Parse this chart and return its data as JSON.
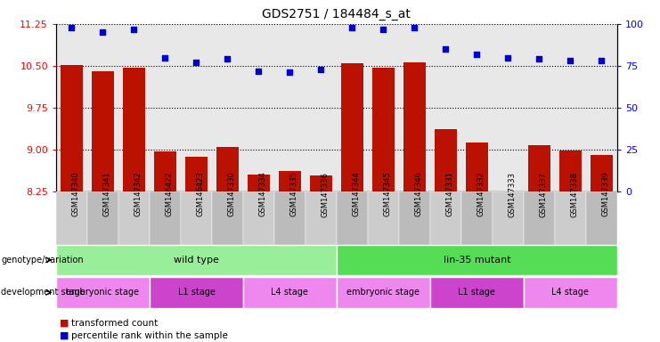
{
  "title": "GDS2751 / 184484_s_at",
  "samples": [
    "GSM147340",
    "GSM147341",
    "GSM147342",
    "GSM146422",
    "GSM146423",
    "GSM147330",
    "GSM147334",
    "GSM147335",
    "GSM147336",
    "GSM147344",
    "GSM147345",
    "GSM147346",
    "GSM147331",
    "GSM147332",
    "GSM147333",
    "GSM147337",
    "GSM147338",
    "GSM147339"
  ],
  "bar_values": [
    10.51,
    10.4,
    10.47,
    8.97,
    8.87,
    9.04,
    8.56,
    8.62,
    8.53,
    10.54,
    10.47,
    10.56,
    9.37,
    9.12,
    8.25,
    9.08,
    8.98,
    8.9
  ],
  "dot_values": [
    98,
    95,
    97,
    80,
    77,
    79,
    72,
    71,
    73,
    98,
    97,
    98,
    85,
    82,
    80,
    79,
    78,
    78
  ],
  "ylim_left": [
    8.25,
    11.25
  ],
  "yticks_left": [
    8.25,
    9.0,
    9.75,
    10.5,
    11.25
  ],
  "ylim_right": [
    0,
    100
  ],
  "yticks_right": [
    0,
    25,
    50,
    75,
    100
  ],
  "bar_color": "#bb1100",
  "dot_color": "#0000cc",
  "plot_bg": "#e8e8e8",
  "tick_bg": "#cccccc",
  "genotype_groups": [
    {
      "label": "wild type",
      "start": 0,
      "end": 9,
      "color": "#99ee99"
    },
    {
      "label": "lin-35 mutant",
      "start": 9,
      "end": 18,
      "color": "#55dd55"
    }
  ],
  "dev_stage_groups": [
    {
      "label": "embryonic stage",
      "start": 0,
      "end": 3,
      "color": "#ee88ee"
    },
    {
      "label": "L1 stage",
      "start": 3,
      "end": 6,
      "color": "#cc44cc"
    },
    {
      "label": "L4 stage",
      "start": 6,
      "end": 9,
      "color": "#ee88ee"
    },
    {
      "label": "embryonic stage",
      "start": 9,
      "end": 12,
      "color": "#ee88ee"
    },
    {
      "label": "L1 stage",
      "start": 12,
      "end": 15,
      "color": "#cc44cc"
    },
    {
      "label": "L4 stage",
      "start": 15,
      "end": 18,
      "color": "#ee88ee"
    }
  ]
}
